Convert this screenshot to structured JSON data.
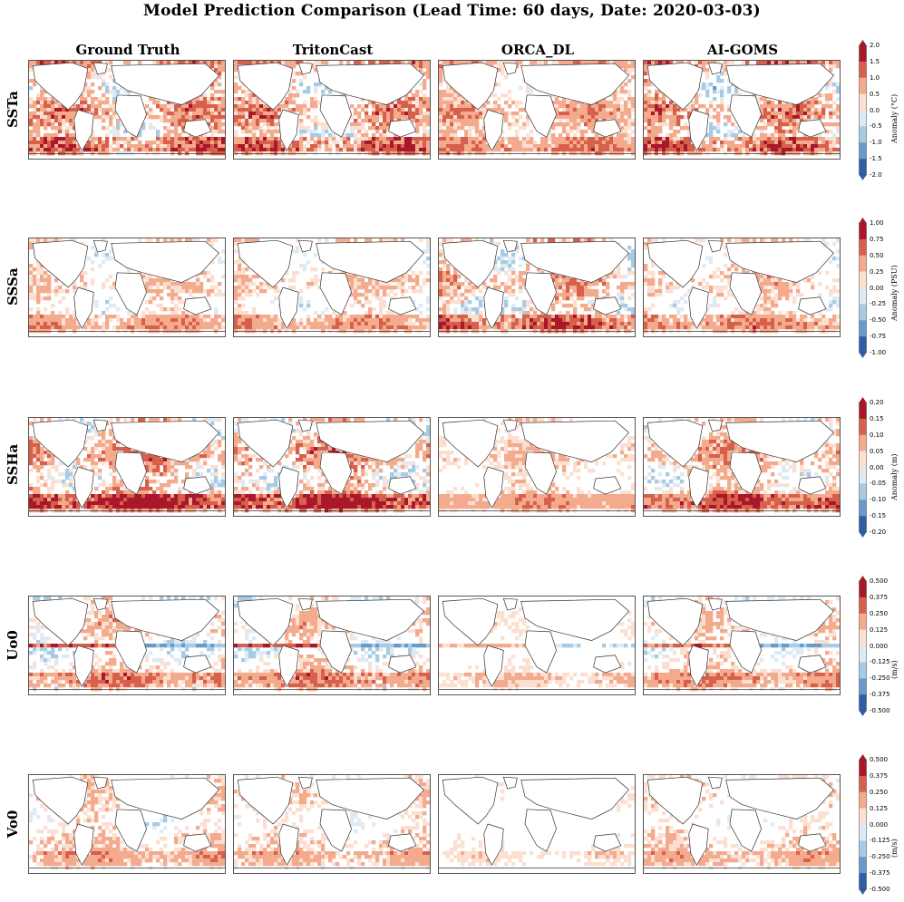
{
  "chart_data": {
    "type": "heatmap",
    "title": "Model Prediction Comparison (Lead Time: 60 days, Date: 2020-03-03)",
    "columns": [
      "Ground Truth",
      "TritonCast",
      "ORCA_DL",
      "AI-GOMS"
    ],
    "colormap": [
      "#2f5ea8",
      "#6a9acb",
      "#a8cbe3",
      "#deebf4",
      "#fbe0d2",
      "#f4aa8c",
      "#d7604c",
      "#a8172a"
    ],
    "rows": [
      {
        "label": "SSTa",
        "colorbar_title": "Anomaly (°C)",
        "ticks": [
          "2.0",
          "1.5",
          "1.0",
          "0.5",
          "0.0",
          "-0.5",
          "-1.0",
          "-1.5",
          "-2.0"
        ],
        "range": [
          -2.0,
          2.0
        ],
        "panel_intensity": [
          0.8,
          0.75,
          0.5,
          0.8
        ],
        "panel_bias": [
          0.35,
          0.35,
          0.4,
          0.35
        ]
      },
      {
        "label": "SSSa",
        "colorbar_title": "Anomaly (PSU)",
        "ticks": [
          "1.00",
          "0.75",
          "0.50",
          "0.25",
          "0.00",
          "-0.25",
          "-0.50",
          "-0.75",
          "-1.00"
        ],
        "range": [
          -1.0,
          1.0
        ],
        "panel_intensity": [
          0.45,
          0.45,
          0.7,
          0.5
        ],
        "panel_bias": [
          0.2,
          0.2,
          0.3,
          0.25
        ]
      },
      {
        "label": "SSHa",
        "colorbar_title": "Anomaly (m)",
        "ticks": [
          "0.20",
          "0.15",
          "0.10",
          "0.05",
          "0.00",
          "-0.05",
          "-0.10",
          "-0.15",
          "-0.20"
        ],
        "range": [
          -0.2,
          0.2
        ],
        "panel_intensity": [
          0.8,
          0.8,
          0.35,
          0.65
        ],
        "panel_bias": [
          0.45,
          0.45,
          0.3,
          0.4
        ]
      },
      {
        "label": "Uo0",
        "colorbar_title": "(m/s)",
        "ticks": [
          "0.500",
          "0.375",
          "0.250",
          "0.125",
          "0.000",
          "-0.125",
          "-0.250",
          "-0.375",
          "-0.500"
        ],
        "range": [
          -0.5,
          0.5
        ],
        "panel_intensity": [
          0.55,
          0.55,
          0.25,
          0.5
        ],
        "panel_bias": [
          0.15,
          0.15,
          0.1,
          0.15
        ]
      },
      {
        "label": "Vo0",
        "colorbar_title": "(m/s)",
        "ticks": [
          "0.500",
          "0.375",
          "0.250",
          "0.125",
          "0.000",
          "-0.125",
          "-0.250",
          "-0.375",
          "-0.500"
        ],
        "range": [
          -0.5,
          0.5
        ],
        "panel_intensity": [
          0.45,
          0.4,
          0.2,
          0.4
        ],
        "panel_bias": [
          0.2,
          0.15,
          0.1,
          0.15
        ]
      }
    ]
  }
}
